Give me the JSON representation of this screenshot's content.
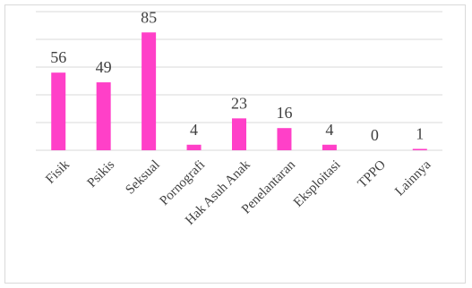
{
  "chart_data": {
    "type": "bar",
    "categories": [
      "Fisik",
      "Psikis",
      "Seksual",
      "Pornografi",
      "Hak Asuh Anak",
      "Penelantaran",
      "Eksploitasi",
      "TPPO",
      "Lainnya"
    ],
    "values": [
      56,
      49,
      85,
      4,
      23,
      16,
      4,
      0,
      1
    ],
    "data_labels": [
      "56",
      "49",
      "85",
      "4",
      "23",
      "16",
      "4",
      "0",
      "1"
    ],
    "ylim": [
      0,
      100
    ],
    "grid": true,
    "legend": "none",
    "bar_color": "#ff40c8"
  }
}
